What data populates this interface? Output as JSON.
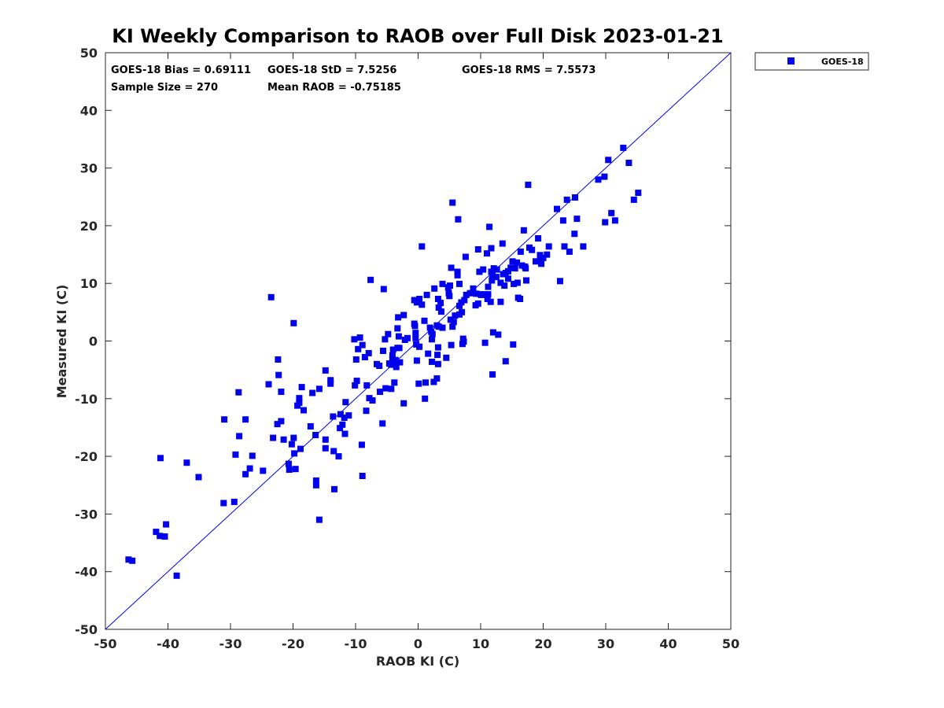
{
  "chart_data": {
    "type": "scatter",
    "title": "KI Weekly Comparison to RAOB over Full Disk 2023-01-21",
    "xlabel": "RAOB KI (C)",
    "ylabel": "Measured KI (C)",
    "xlim": [
      -50,
      50
    ],
    "ylim": [
      -50,
      50
    ],
    "xticks": [
      "-50",
      "-40",
      "-30",
      "-20",
      "-10",
      "0",
      "10",
      "20",
      "30",
      "40",
      "50"
    ],
    "yticks": [
      "-50",
      "-40",
      "-30",
      "-20",
      "-10",
      "0",
      "10",
      "20",
      "30",
      "40",
      "50"
    ],
    "legend_position": "outside-top-right",
    "reference_line": "y = x",
    "colors": {
      "marker": "#0000ee",
      "line": "#0000ee",
      "axis": "#262626"
    },
    "stats": {
      "bias": "GOES-18 Bias = 0.69111",
      "std": "GOES-18 StD = 7.5256",
      "rms": "GOES-18 RMS = 7.5573",
      "sample": "Sample Size = 270",
      "mean": "Mean RAOB = -0.75185"
    },
    "series": [
      {
        "name": "GOES-18",
        "points": [
          [
            -46.3,
            -37.9
          ],
          [
            -45.7,
            -38.1
          ],
          [
            -41.9,
            -33.1
          ],
          [
            -41.3,
            -33.8
          ],
          [
            -40.5,
            -33.9
          ],
          [
            -40.3,
            -31.8
          ],
          [
            -41.2,
            -20.3
          ],
          [
            -38.6,
            -40.7
          ],
          [
            -37,
            -21.1
          ],
          [
            -35.1,
            -23.6
          ],
          [
            -31.1,
            -28.1
          ],
          [
            -29.4,
            -27.9
          ],
          [
            -31,
            -13.6
          ],
          [
            -29.2,
            -19.7
          ],
          [
            -28.6,
            -16.5
          ],
          [
            -28.7,
            -8.9
          ],
          [
            -27.6,
            -13.6
          ],
          [
            -27.6,
            -23.1
          ],
          [
            -26.9,
            -22.1
          ],
          [
            -26.5,
            -19.9
          ],
          [
            -24.8,
            -22.5
          ],
          [
            -23.9,
            -7.5
          ],
          [
            -23.5,
            7.6
          ],
          [
            -23.2,
            -16.8
          ],
          [
            -22.3,
            -5.9
          ],
          [
            -22.4,
            -3.2
          ],
          [
            -22.5,
            -14.4
          ],
          [
            -21.9,
            -13.9
          ],
          [
            -21.9,
            -8.8
          ],
          [
            -21.5,
            -17.1
          ],
          [
            -20.7,
            -21.3
          ],
          [
            -20.6,
            -22.3
          ],
          [
            -20.2,
            -17.9
          ],
          [
            -19.9,
            -16.8
          ],
          [
            -19.8,
            -19.5
          ],
          [
            -19.6,
            -22.2
          ],
          [
            -19.9,
            3.1
          ],
          [
            -19.3,
            -11.2
          ],
          [
            -19,
            -10.7
          ],
          [
            -19,
            -9.9
          ],
          [
            -18.8,
            -18.7
          ],
          [
            -18.6,
            -8
          ],
          [
            -18.3,
            -12
          ],
          [
            -17.2,
            -14.8
          ],
          [
            -16.9,
            -9
          ],
          [
            -16.4,
            -16.3
          ],
          [
            -16.3,
            -24.2
          ],
          [
            -16.3,
            -25
          ],
          [
            -15.8,
            -31
          ],
          [
            -15.8,
            -8.3
          ],
          [
            -14.8,
            -17.1
          ],
          [
            -14.8,
            -18.6
          ],
          [
            -14.8,
            -5.1
          ],
          [
            -14,
            -6.8
          ],
          [
            -14,
            -7.4
          ],
          [
            -13.6,
            -13.1
          ],
          [
            -13.5,
            -19.1
          ],
          [
            -13.4,
            -25.7
          ],
          [
            -12.7,
            -20
          ],
          [
            -12.5,
            -15.1
          ],
          [
            -12.4,
            -12.7
          ],
          [
            -12.1,
            -14.5
          ],
          [
            -11.8,
            -13.3
          ],
          [
            -11.6,
            -10.6
          ],
          [
            -11.7,
            -16.1
          ],
          [
            -11.1,
            -12.9
          ],
          [
            -10.2,
            0.3
          ],
          [
            -10.1,
            -7.7
          ],
          [
            -9.9,
            -3.2
          ],
          [
            -9.8,
            -6.9
          ],
          [
            -9.6,
            -1.4
          ],
          [
            -9.3,
            0.6
          ],
          [
            -9,
            -18
          ],
          [
            -8.9,
            -23.4
          ],
          [
            -8.9,
            -0.7
          ],
          [
            -8.5,
            -2.8
          ],
          [
            -8.2,
            -7.7
          ],
          [
            -8.3,
            -12.1
          ],
          [
            -7.9,
            -2.1
          ],
          [
            -7.8,
            -9.9
          ],
          [
            -7.6,
            10.6
          ],
          [
            -7.3,
            -10.3
          ],
          [
            -6.6,
            -4
          ],
          [
            -6.2,
            -4.3
          ],
          [
            -6.1,
            -8.8
          ],
          [
            -5.7,
            -14.3
          ],
          [
            -5.6,
            -1.7
          ],
          [
            -5.5,
            9
          ],
          [
            -5.3,
            0.3
          ],
          [
            -5.2,
            -8.2
          ],
          [
            -4.8,
            1.2
          ],
          [
            -4.6,
            -3.9
          ],
          [
            -4.3,
            -4.1
          ],
          [
            -4.1,
            -2.5
          ],
          [
            -4.3,
            -8.3
          ],
          [
            -4,
            -1.5
          ],
          [
            -4.1,
            -3
          ],
          [
            -3.8,
            -3.9
          ],
          [
            -3.8,
            -7.2
          ],
          [
            -3.6,
            -3.3
          ],
          [
            -3.5,
            -4.5
          ],
          [
            -3.3,
            -1.2
          ],
          [
            -3.3,
            2.2
          ],
          [
            -3.2,
            4.1
          ],
          [
            -3.1,
            0.8
          ],
          [
            -3,
            -1.2
          ],
          [
            -2.9,
            -3.7
          ],
          [
            -2.3,
            -10.8
          ],
          [
            -2.3,
            4.5
          ],
          [
            -2.1,
            0.2
          ],
          [
            -1.7,
            0.5
          ],
          [
            -0.6,
            3
          ],
          [
            -0.6,
            7.1
          ],
          [
            -0.5,
            2.6
          ],
          [
            -0.4,
            1.4
          ],
          [
            -0.4,
            0.5
          ],
          [
            -0.3,
            -0.6
          ],
          [
            -0.2,
            6.7
          ],
          [
            -0.2,
            -3.4
          ],
          [
            0.2,
            -1
          ],
          [
            0.1,
            -7.4
          ],
          [
            0.2,
            7.3
          ],
          [
            0.6,
            16.4
          ],
          [
            0.6,
            6.3
          ],
          [
            1,
            3.5
          ],
          [
            1.1,
            -10
          ],
          [
            1.2,
            -7.2
          ],
          [
            1.4,
            8
          ],
          [
            1.6,
            -2.2
          ],
          [
            1.9,
            2.3
          ],
          [
            2.1,
            1.6
          ],
          [
            2.2,
            -3.6
          ],
          [
            2.2,
            0.3
          ],
          [
            2.3,
            1.2
          ],
          [
            2.5,
            -7.1
          ],
          [
            2.6,
            9.1
          ],
          [
            3,
            2.7
          ],
          [
            3,
            -6.5
          ],
          [
            3.1,
            -2.4
          ],
          [
            3.2,
            -1.1
          ],
          [
            3.2,
            -4
          ],
          [
            3.2,
            7.3
          ],
          [
            3.3,
            2.5
          ],
          [
            3.3,
            5.8
          ],
          [
            3.6,
            6.6
          ],
          [
            3.7,
            5.1
          ],
          [
            3.9,
            9.9
          ],
          [
            3.9,
            2.3
          ],
          [
            4.5,
            -2.9
          ],
          [
            4.8,
            9.3
          ],
          [
            4.9,
            8.3
          ],
          [
            5,
            7.8
          ],
          [
            5.1,
            9.6
          ],
          [
            5.2,
            3.7
          ],
          [
            5.3,
            12.7
          ],
          [
            5.3,
            -0.7
          ],
          [
            5.5,
            24
          ],
          [
            5.5,
            2.5
          ],
          [
            5.7,
            3.3
          ],
          [
            5.9,
            4.4
          ],
          [
            6.3,
            12
          ],
          [
            6.3,
            11.4
          ],
          [
            6.4,
            21.1
          ],
          [
            6.6,
            4.6
          ],
          [
            6.6,
            6.1
          ],
          [
            6.6,
            9.9
          ],
          [
            6.9,
            6.7
          ],
          [
            7,
            5
          ],
          [
            7.2,
            0.4
          ],
          [
            7.1,
            -0.5
          ],
          [
            7.3,
            -0.1
          ],
          [
            7.4,
            7.1
          ],
          [
            7.6,
            14.6
          ],
          [
            7.7,
            8
          ],
          [
            8.3,
            8.3
          ],
          [
            8.8,
            9.1
          ],
          [
            9.2,
            6.2
          ],
          [
            9.3,
            8.2
          ],
          [
            9.6,
            15.9
          ],
          [
            9.6,
            6.5
          ],
          [
            9.8,
            12
          ],
          [
            10,
            8.1
          ],
          [
            10.1,
            8
          ],
          [
            10.4,
            12.4
          ],
          [
            10.6,
            8.1
          ],
          [
            10.7,
            -0.3
          ],
          [
            11,
            15.2
          ],
          [
            11.1,
            7.3
          ],
          [
            11.2,
            8.1
          ],
          [
            11.2,
            9.4
          ],
          [
            11.4,
            19.8
          ],
          [
            11.6,
            6.8
          ],
          [
            11.7,
            16.1
          ],
          [
            11.8,
            10.5
          ],
          [
            11.7,
            12
          ],
          [
            11.9,
            11.4
          ],
          [
            11.9,
            -5.8
          ],
          [
            12,
            1.5
          ],
          [
            12.1,
            12.6
          ],
          [
            12.5,
            11.1
          ],
          [
            12.6,
            12.4
          ],
          [
            12.8,
            1.1
          ],
          [
            13.2,
            6.8
          ],
          [
            13.2,
            10.1
          ],
          [
            13.5,
            16.9
          ],
          [
            13.6,
            11.6
          ],
          [
            13.8,
            9.6
          ],
          [
            14,
            11.8
          ],
          [
            14,
            -3.5
          ],
          [
            14.4,
            12.1
          ],
          [
            14.4,
            10.8
          ],
          [
            14.8,
            12.7
          ],
          [
            15.1,
            13.8
          ],
          [
            15.2,
            -0.6
          ],
          [
            15.3,
            9.9
          ],
          [
            15.5,
            12.6
          ],
          [
            15.8,
            13.6
          ],
          [
            15.9,
            10.1
          ],
          [
            16,
            7.5
          ],
          [
            16.3,
            7.3
          ],
          [
            16.4,
            15.5
          ],
          [
            16.6,
            13.1
          ],
          [
            16.9,
            19.2
          ],
          [
            17.1,
            12.9
          ],
          [
            17.2,
            12.6
          ],
          [
            17.3,
            10.5
          ],
          [
            17.6,
            27.1
          ],
          [
            17.8,
            16.2
          ],
          [
            18.2,
            15.8
          ],
          [
            18.8,
            13.8
          ],
          [
            19.2,
            17.8
          ],
          [
            19.5,
            14.2
          ],
          [
            19.5,
            14.9
          ],
          [
            19.7,
            13.4
          ],
          [
            20,
            14.4
          ],
          [
            20.6,
            15
          ],
          [
            20.9,
            16.4
          ],
          [
            22.2,
            22.9
          ],
          [
            22.7,
            10.4
          ],
          [
            23.2,
            20.9
          ],
          [
            23.4,
            16.4
          ],
          [
            23.8,
            24.5
          ],
          [
            24.2,
            15.5
          ],
          [
            25,
            18.6
          ],
          [
            25.1,
            24.9
          ],
          [
            25.4,
            21.2
          ],
          [
            26.4,
            16.4
          ],
          [
            28.8,
            28
          ],
          [
            29.8,
            28.5
          ],
          [
            29.9,
            20.6
          ],
          [
            30.4,
            31.4
          ],
          [
            30.9,
            22.2
          ],
          [
            31.5,
            20.9
          ],
          [
            32.8,
            33.5
          ],
          [
            33.7,
            30.9
          ],
          [
            34.5,
            24.5
          ],
          [
            35.2,
            25.7
          ]
        ]
      }
    ]
  }
}
